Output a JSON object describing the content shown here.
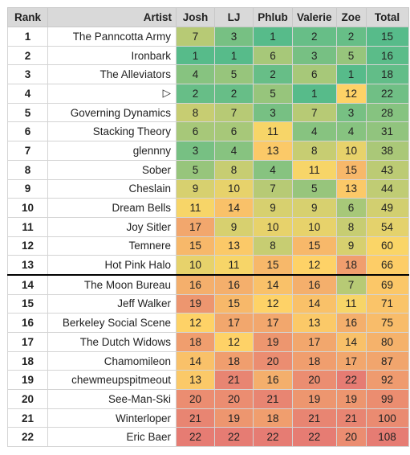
{
  "columns": [
    "Rank",
    "Artist",
    "Josh",
    "LJ",
    "Phlub",
    "Valerie",
    "Zoe",
    "Total"
  ],
  "separator_after_rank": 13,
  "rows": [
    {
      "rank": "1",
      "artist": "The Panncotta Army",
      "scores": [
        "7",
        "3",
        "1",
        "2",
        "2",
        "15"
      ]
    },
    {
      "rank": "2",
      "artist": "Ironbark",
      "scores": [
        "1",
        "1",
        "6",
        "3",
        "5",
        "16"
      ]
    },
    {
      "rank": "3",
      "artist": "The Alleviators",
      "scores": [
        "4",
        "5",
        "2",
        "6",
        "1",
        "18"
      ]
    },
    {
      "rank": "4",
      "artist": "▷",
      "scores": [
        "2",
        "2",
        "5",
        "1",
        "12",
        "22"
      ]
    },
    {
      "rank": "5",
      "artist": "Governing Dynamics",
      "scores": [
        "8",
        "7",
        "3",
        "7",
        "3",
        "28"
      ]
    },
    {
      "rank": "6",
      "artist": "Stacking Theory",
      "scores": [
        "6",
        "6",
        "11",
        "4",
        "4",
        "31"
      ]
    },
    {
      "rank": "7",
      "artist": "glennny",
      "scores": [
        "3",
        "4",
        "13",
        "8",
        "10",
        "38"
      ]
    },
    {
      "rank": "8",
      "artist": "Sober",
      "scores": [
        "5",
        "8",
        "4",
        "11",
        "15",
        "43"
      ]
    },
    {
      "rank": "9",
      "artist": "Cheslain",
      "scores": [
        "9",
        "10",
        "7",
        "5",
        "13",
        "44"
      ]
    },
    {
      "rank": "10",
      "artist": "Dream Bells",
      "scores": [
        "11",
        "14",
        "9",
        "9",
        "6",
        "49"
      ]
    },
    {
      "rank": "11",
      "artist": "Joy Sitler",
      "scores": [
        "17",
        "9",
        "10",
        "10",
        "8",
        "54"
      ]
    },
    {
      "rank": "12",
      "artist": "Temnere",
      "scores": [
        "15",
        "13",
        "8",
        "15",
        "9",
        "60"
      ]
    },
    {
      "rank": "13",
      "artist": "Hot Pink Halo",
      "scores": [
        "10",
        "11",
        "15",
        "12",
        "18",
        "66"
      ]
    },
    {
      "rank": "14",
      "artist": "The Moon Bureau",
      "scores": [
        "16",
        "16",
        "14",
        "16",
        "7",
        "69"
      ]
    },
    {
      "rank": "15",
      "artist": "Jeff Walker",
      "scores": [
        "19",
        "15",
        "12",
        "14",
        "11",
        "71"
      ]
    },
    {
      "rank": "16",
      "artist": "Berkeley Social Scene",
      "scores": [
        "12",
        "17",
        "17",
        "13",
        "16",
        "75"
      ]
    },
    {
      "rank": "17",
      "artist": "The Dutch Widows",
      "scores": [
        "18",
        "12",
        "19",
        "17",
        "14",
        "80"
      ]
    },
    {
      "rank": "18",
      "artist": "Chamomileon",
      "scores": [
        "14",
        "18",
        "20",
        "18",
        "17",
        "87"
      ]
    },
    {
      "rank": "19",
      "artist": "chewmeupspitmeout",
      "scores": [
        "13",
        "21",
        "16",
        "20",
        "22",
        "92"
      ]
    },
    {
      "rank": "20",
      "artist": "See-Man-Ski",
      "scores": [
        "20",
        "20",
        "21",
        "19",
        "19",
        "99"
      ]
    },
    {
      "rank": "21",
      "artist": "Winterloper",
      "scores": [
        "21",
        "19",
        "18",
        "21",
        "21",
        "100"
      ]
    },
    {
      "rank": "22",
      "artist": "Eric Baer",
      "scores": [
        "22",
        "22",
        "22",
        "22",
        "20",
        "108"
      ]
    }
  ],
  "colors": {
    "header_bg": "#d9d9d9",
    "scale_low": "#57bb8a",
    "scale_mid": "#ffd666",
    "scale_high": "#e67c73"
  },
  "color_scales": {
    "player": {
      "min": 1,
      "max": 22
    },
    "total": {
      "min": 15,
      "max": 108
    }
  }
}
